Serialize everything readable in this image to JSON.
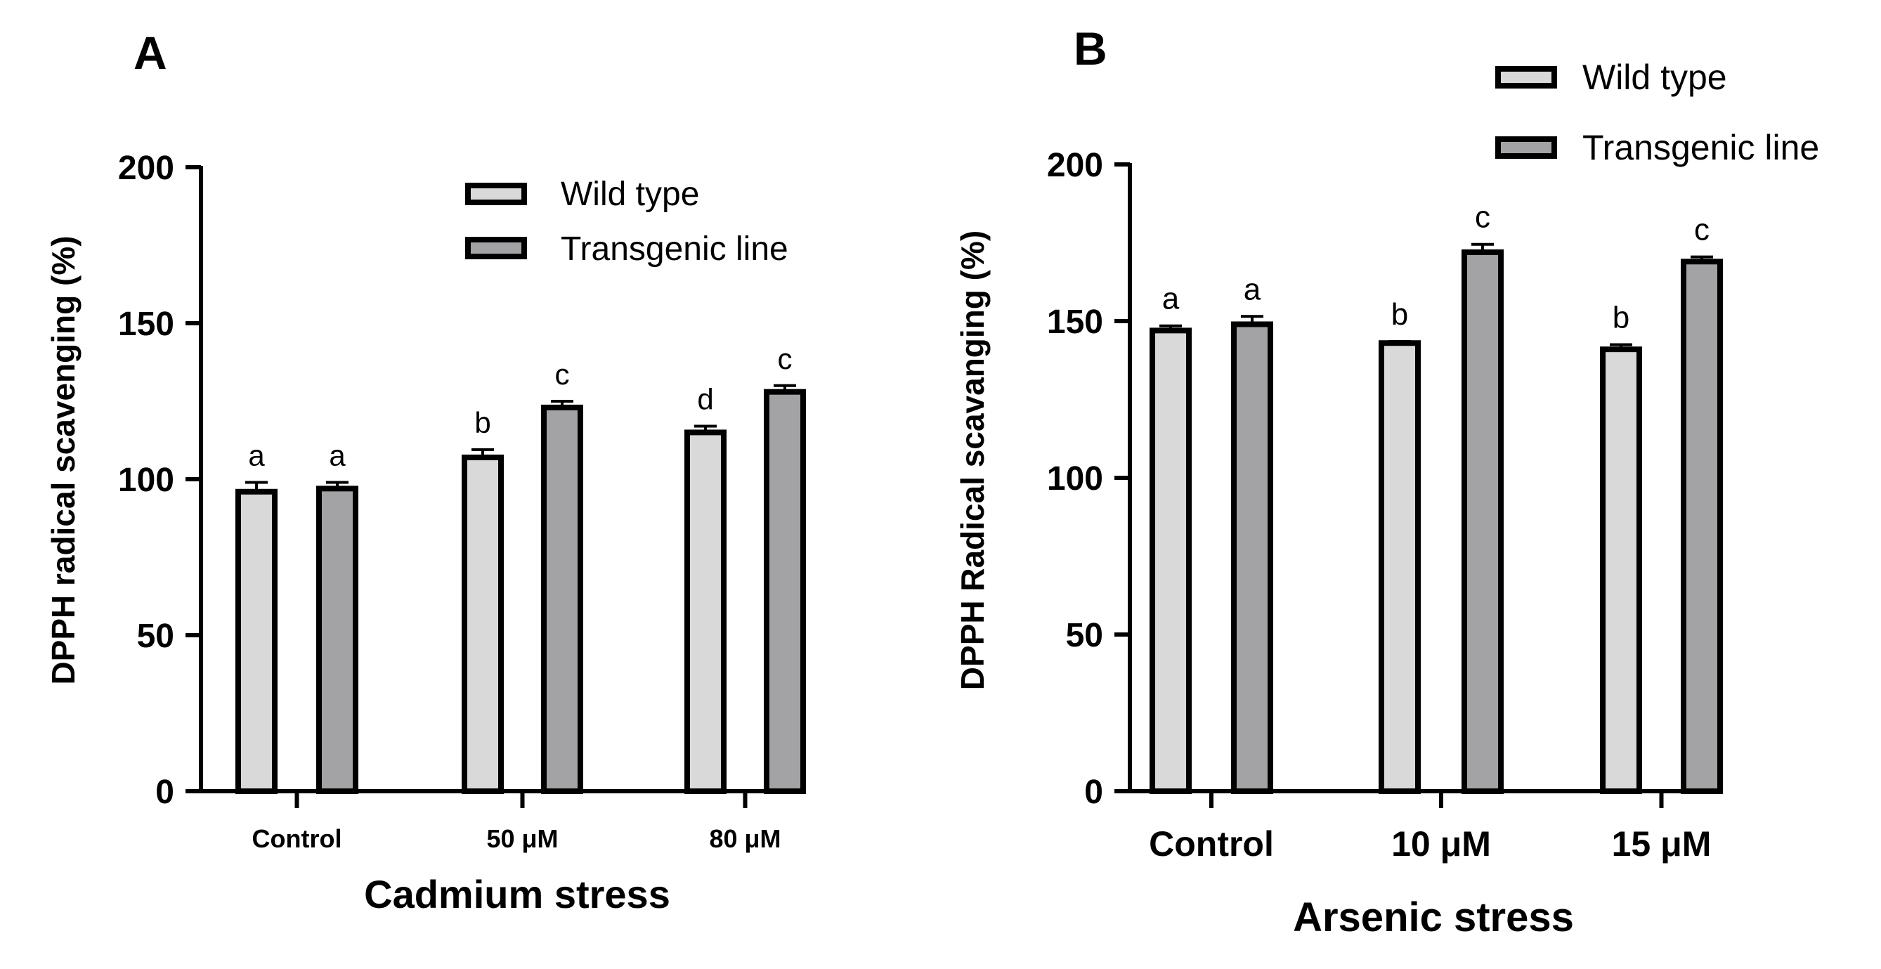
{
  "colors": {
    "wild_type": "#d9d9d9",
    "transgenic": "#a3a3a6",
    "stroke": "#000000"
  },
  "chart_data": [
    {
      "panel": "A",
      "type": "bar",
      "categories": [
        "Control",
        "50 μM",
        "80 μM"
      ],
      "series": [
        {
          "name": "Wild type",
          "values": [
            96,
            107,
            115
          ],
          "errors": [
            3,
            2.5,
            2
          ],
          "letters": [
            "a",
            "b",
            "d"
          ]
        },
        {
          "name": "Transgenic line",
          "values": [
            97,
            123,
            128
          ],
          "errors": [
            2,
            2,
            2
          ],
          "letters": [
            "a",
            "c",
            "c"
          ]
        }
      ],
      "xlabel": "Cadmium stress",
      "ylabel": "DPPH radical scavenging (%)",
      "ylim": [
        0,
        200
      ],
      "yticks": [
        "0",
        "50",
        "100",
        "150",
        "200"
      ],
      "legend_position": "top-right"
    },
    {
      "panel": "B",
      "type": "bar",
      "categories": [
        "Control",
        "10 μM",
        "15 μM"
      ],
      "series": [
        {
          "name": "Wild type",
          "values": [
            147,
            143,
            141
          ],
          "errors": [
            1.5,
            0.5,
            1.5
          ],
          "letters": [
            "a",
            "b",
            "b"
          ]
        },
        {
          "name": "Transgenic line",
          "values": [
            149,
            172,
            169
          ],
          "errors": [
            2.5,
            2.5,
            1.5
          ],
          "letters": [
            "a",
            "c",
            "c"
          ]
        }
      ],
      "xlabel": "Arsenic stress",
      "ylabel": "DPPH Radical scavanging (%)",
      "ylim": [
        0,
        200
      ],
      "yticks": [
        "0",
        "50",
        "100",
        "150",
        "200"
      ],
      "legend_position": "top-right"
    }
  ]
}
